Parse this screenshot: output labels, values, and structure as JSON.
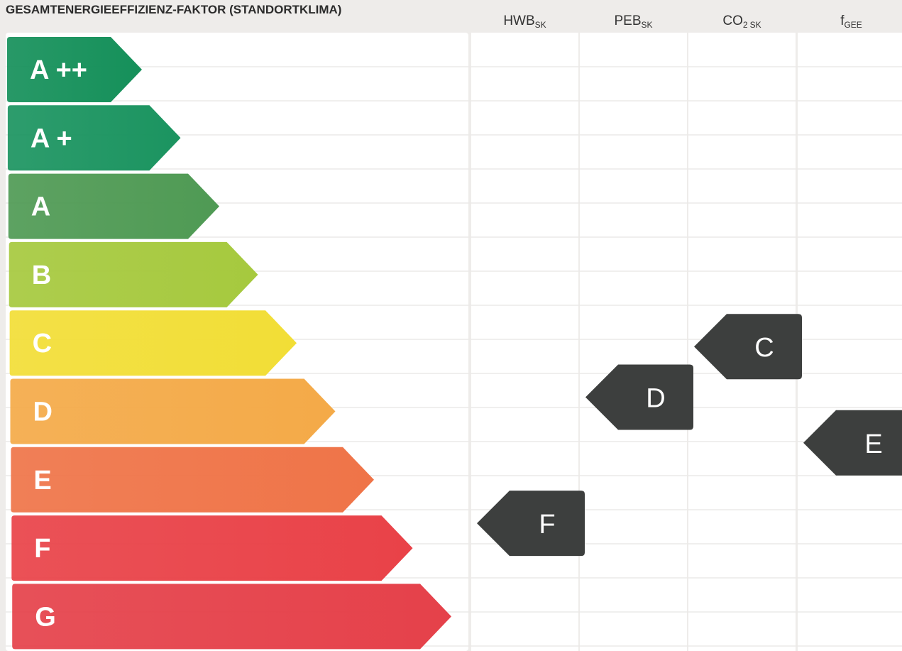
{
  "chart_data": {
    "type": "energy-rating",
    "title": "GESAMTENERGIEEFFIZIENZ-FAKTOR (STANDORTKLIMA)",
    "classes": [
      {
        "label": "A ++",
        "color": "#15905a"
      },
      {
        "label": "A +",
        "color": "#1b9460"
      },
      {
        "label": "A",
        "color": "#4f9a54"
      },
      {
        "label": "B",
        "color": "#a6c93e"
      },
      {
        "label": "C",
        "color": "#f2de36"
      },
      {
        "label": "D",
        "color": "#f4aa48"
      },
      {
        "label": "E",
        "color": "#ef7448"
      },
      {
        "label": "F",
        "color": "#e94248"
      },
      {
        "label": "G",
        "color": "#e5414a"
      }
    ],
    "columns": [
      {
        "main": "HWB",
        "sub": "SK",
        "rating": "F"
      },
      {
        "main": "PEB",
        "sub": "SK",
        "rating": "D"
      },
      {
        "main": "CO",
        "mid": "2",
        "sub": "SK",
        "rating": "C"
      },
      {
        "main": "f",
        "sub": "GEE",
        "rating": "E"
      }
    ],
    "marker_color": "#3d3f3e",
    "grid_color": "#ffffff",
    "background": "#eeecea"
  }
}
